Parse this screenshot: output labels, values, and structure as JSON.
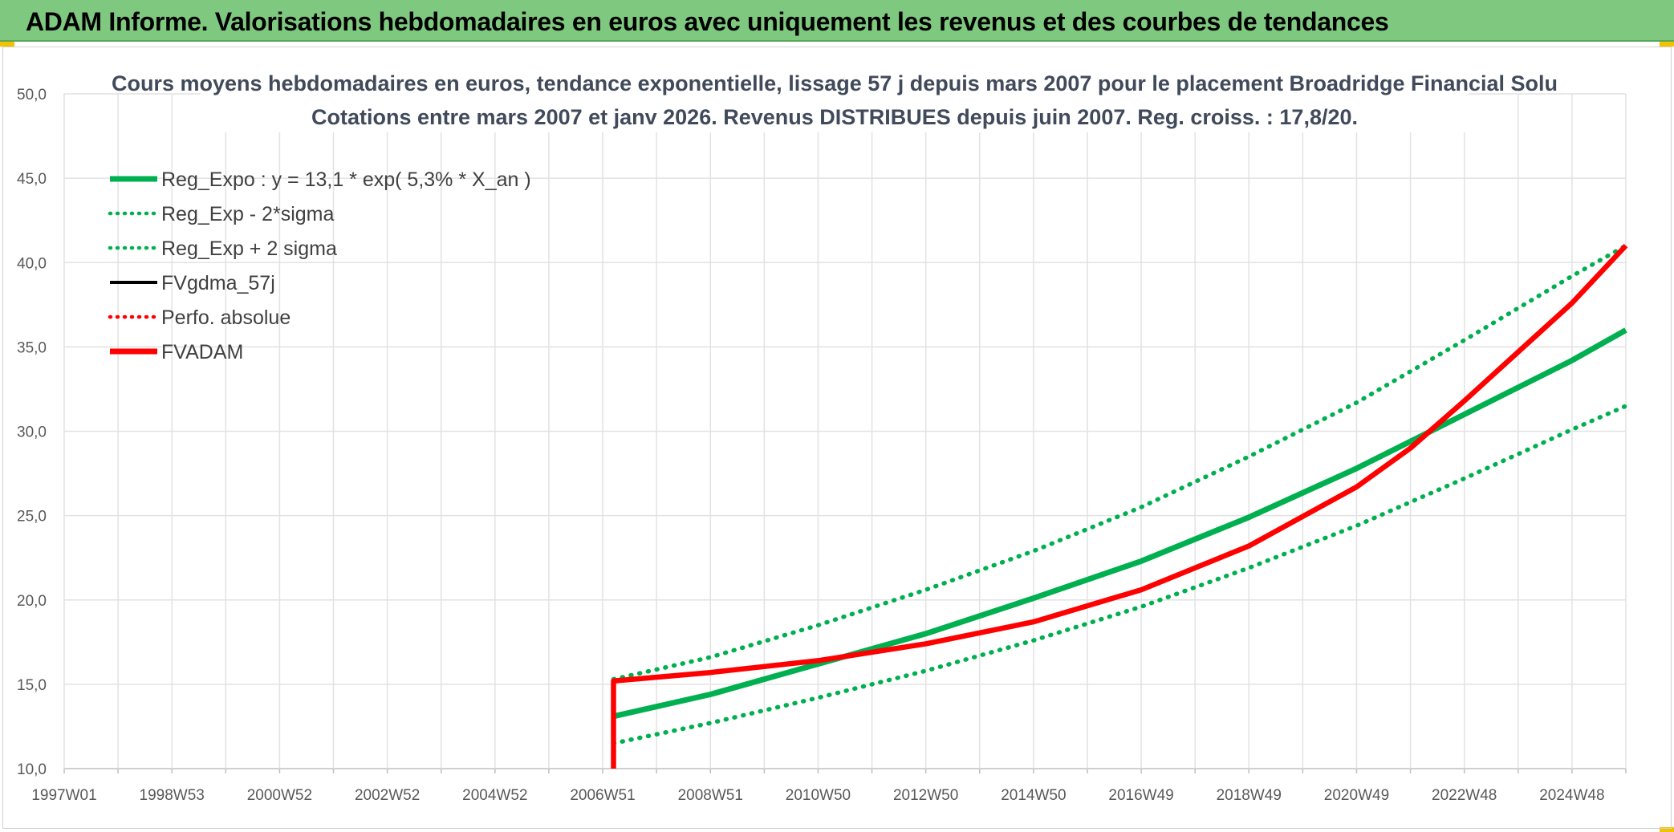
{
  "header": {
    "title": "ADAM Informe. Valorisations hebdomadaires en euros avec uniquement les revenus et des courbes de tendances"
  },
  "colors": {
    "header_bg": "#7fc87f",
    "green": "#00b050",
    "red": "#ff0000",
    "black": "#000000"
  },
  "chart_data": {
    "type": "line",
    "title": "Cours moyens hebdomadaires en euros, tendance exponentielle, lissage 57 j depuis mars 2007 pour le placement Broadridge Financial Solu",
    "subtitle": "Cotations entre mars 2007 et janv 2026. Revenus DISTRIBUES depuis juin 2007. Reg. croiss. : 17,8/20.",
    "xlabel": "",
    "ylabel": "",
    "ylim": [
      10,
      50
    ],
    "xlim": [
      1997.0,
      2026.0
    ],
    "grid": true,
    "legend_position": "top-left",
    "y_ticks": [
      "10,0",
      "15,0",
      "20,0",
      "25,0",
      "30,0",
      "35,0",
      "40,0",
      "45,0",
      "50,0"
    ],
    "x_tick_labels": [
      "1997W01",
      "1998W53",
      "2000W52",
      "2002W52",
      "2004W52",
      "2006W51",
      "2008W51",
      "2010W50",
      "2012W50",
      "2014W50",
      "2016W49",
      "2018W49",
      "2020W49",
      "2022W48",
      "2024W48"
    ],
    "series": [
      {
        "name": "Reg_Expo : y = 13,1 * exp( 5,3% *  X_an )",
        "style": "solid",
        "color": "#00b050",
        "x": [
          2007.2,
          2009,
          2011,
          2013,
          2015,
          2017,
          2019,
          2021,
          2023,
          2025,
          2026.0
        ],
        "y": [
          13.1,
          14.4,
          16.2,
          18.0,
          20.1,
          22.3,
          24.9,
          27.8,
          31.0,
          34.2,
          36.0
        ]
      },
      {
        "name": "Reg_Exp - 2*sigma",
        "style": "dotted",
        "color": "#00b050",
        "x": [
          2007.2,
          2009,
          2011,
          2013,
          2015,
          2017,
          2019,
          2021,
          2023,
          2025,
          2026.0
        ],
        "y": [
          11.5,
          12.7,
          14.2,
          15.8,
          17.6,
          19.6,
          21.9,
          24.4,
          27.2,
          30.1,
          31.5
        ]
      },
      {
        "name": "Reg_Exp + 2 sigma",
        "style": "dotted",
        "color": "#00b050",
        "x": [
          2007.2,
          2009,
          2011,
          2013,
          2015,
          2017,
          2019,
          2021,
          2023,
          2025,
          2026.0
        ],
        "y": [
          15.3,
          16.6,
          18.5,
          20.6,
          22.9,
          25.5,
          28.5,
          31.7,
          35.4,
          39.2,
          41.0
        ]
      },
      {
        "name": "FVgdma_57j",
        "style": "solid",
        "color": "#000000",
        "x": [],
        "y": []
      },
      {
        "name": "Perfo. absolue",
        "style": "dotted",
        "color": "#ff0000",
        "x": [
          2007.2,
          2009,
          2011,
          2013,
          2015,
          2017,
          2019,
          2021,
          2022,
          2023,
          2024,
          2025,
          2026.0
        ],
        "y": [
          15.2,
          15.7,
          16.4,
          17.4,
          18.7,
          20.6,
          23.2,
          26.7,
          29.0,
          31.8,
          34.7,
          37.6,
          41.0
        ]
      },
      {
        "name": "FVADAM",
        "style": "solid",
        "color": "#ff0000",
        "x": [
          2007.2,
          2007.2,
          2009,
          2011,
          2013,
          2015,
          2017,
          2019,
          2021,
          2022,
          2023,
          2024,
          2025,
          2026.0
        ],
        "y": [
          10.0,
          15.2,
          15.7,
          16.4,
          17.4,
          18.7,
          20.6,
          23.2,
          26.7,
          29.0,
          31.8,
          34.7,
          37.6,
          41.0
        ]
      }
    ]
  }
}
